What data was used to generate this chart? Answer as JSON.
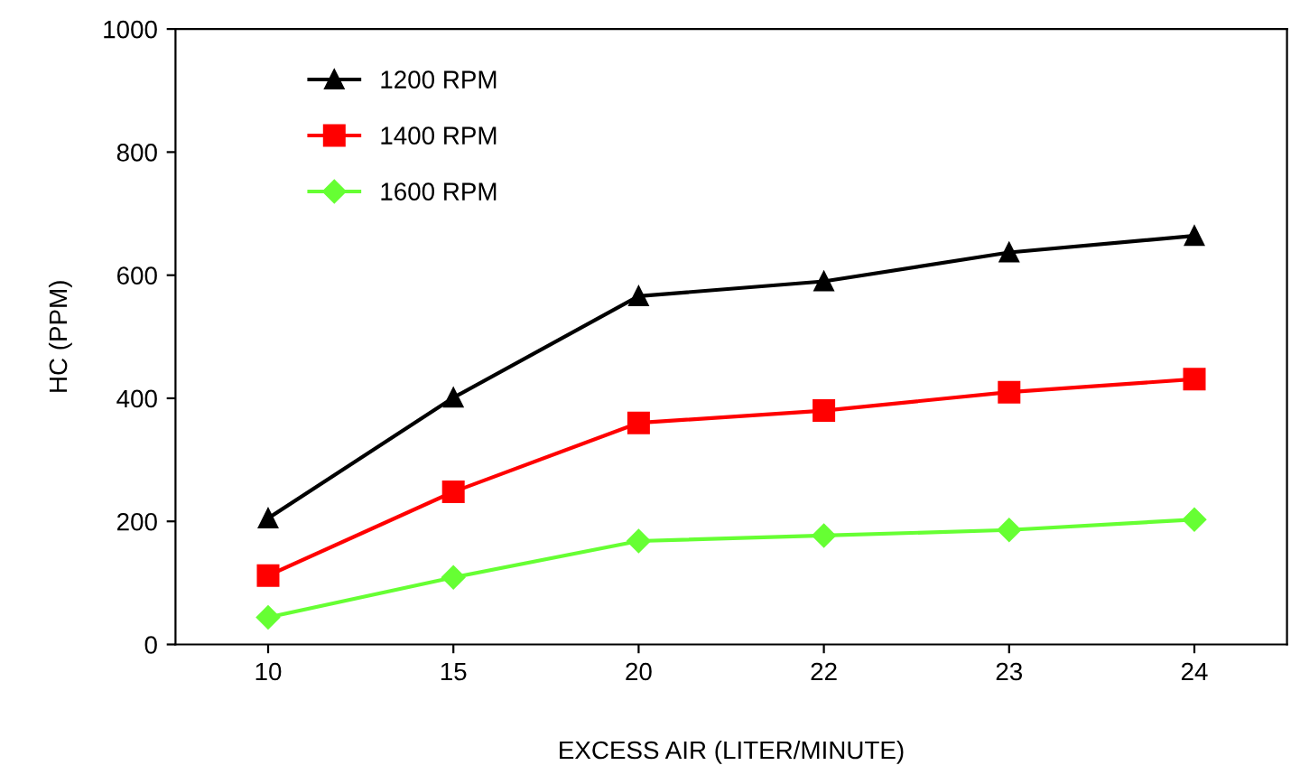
{
  "chart_data": {
    "type": "line",
    "xlabel": "EXCESS AIR (LITER/MINUTE)",
    "ylabel": "HC (PPM)",
    "categories": [
      "10",
      "15",
      "20",
      "22",
      "23",
      "24"
    ],
    "series": [
      {
        "name": "1200 RPM",
        "color": "#000000",
        "marker": "triangle",
        "values": [
          205,
          401,
          566,
          590,
          637,
          664
        ]
      },
      {
        "name": "1400 RPM",
        "color": "#ff0000",
        "marker": "square",
        "values": [
          112,
          248,
          360,
          380,
          410,
          431
        ]
      },
      {
        "name": "1600 RPM",
        "color": "#66ff33",
        "marker": "diamond",
        "values": [
          44,
          109,
          168,
          177,
          186,
          203
        ]
      }
    ],
    "ylim": [
      0,
      1000
    ],
    "yticks": [
      0,
      200,
      400,
      600,
      800,
      1000
    ],
    "grid": false,
    "legend": "top left"
  }
}
